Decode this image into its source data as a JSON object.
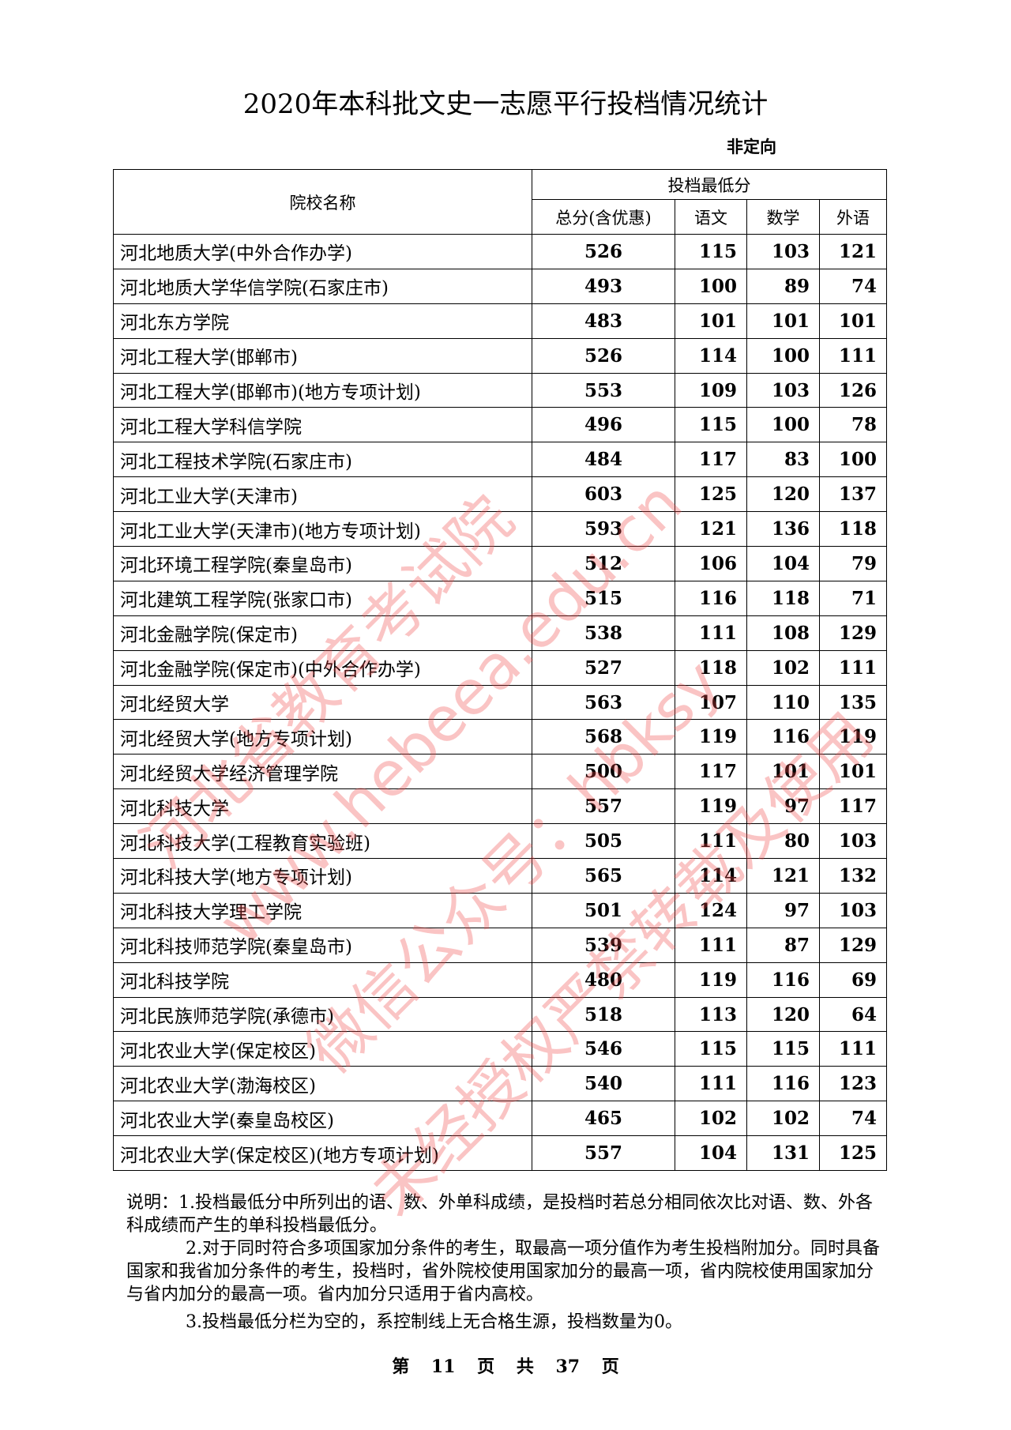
{
  "title": "2020年本科批文史一志愿平行投档情况统计",
  "subtitle": "非定向",
  "table": {
    "header_name": "院校名称",
    "header_group": "投档最低分",
    "columns": [
      "总分(含优惠)",
      "语文",
      "数学",
      "外语"
    ],
    "rows": [
      [
        "河北地质大学(中外合作办学)",
        "526",
        "115",
        "103",
        "121"
      ],
      [
        "河北地质大学华信学院(石家庄市)",
        "493",
        "100",
        "89",
        "74"
      ],
      [
        "河北东方学院",
        "483",
        "101",
        "101",
        "101"
      ],
      [
        "河北工程大学(邯郸市)",
        "526",
        "114",
        "100",
        "111"
      ],
      [
        "河北工程大学(邯郸市)(地方专项计划)",
        "553",
        "109",
        "103",
        "126"
      ],
      [
        "河北工程大学科信学院",
        "496",
        "115",
        "100",
        "78"
      ],
      [
        "河北工程技术学院(石家庄市)",
        "484",
        "117",
        "83",
        "100"
      ],
      [
        "河北工业大学(天津市)",
        "603",
        "125",
        "120",
        "137"
      ],
      [
        "河北工业大学(天津市)(地方专项计划)",
        "593",
        "121",
        "136",
        "118"
      ],
      [
        "河北环境工程学院(秦皇岛市)",
        "512",
        "106",
        "104",
        "79"
      ],
      [
        "河北建筑工程学院(张家口市)",
        "515",
        "116",
        "118",
        "71"
      ],
      [
        "河北金融学院(保定市)",
        "538",
        "111",
        "108",
        "129"
      ],
      [
        "河北金融学院(保定市)(中外合作办学)",
        "527",
        "118",
        "102",
        "111"
      ],
      [
        "河北经贸大学",
        "563",
        "107",
        "110",
        "135"
      ],
      [
        "河北经贸大学(地方专项计划)",
        "568",
        "119",
        "116",
        "119"
      ],
      [
        "河北经贸大学经济管理学院",
        "500",
        "117",
        "101",
        "101"
      ],
      [
        "河北科技大学",
        "557",
        "119",
        "97",
        "117"
      ],
      [
        "河北科技大学(工程教育实验班)",
        "505",
        "111",
        "80",
        "103"
      ],
      [
        "河北科技大学(地方专项计划)",
        "565",
        "114",
        "121",
        "132"
      ],
      [
        "河北科技大学理工学院",
        "501",
        "124",
        "97",
        "103"
      ],
      [
        "河北科技师范学院(秦皇岛市)",
        "539",
        "111",
        "87",
        "129"
      ],
      [
        "河北科技学院",
        "480",
        "119",
        "116",
        "69"
      ],
      [
        "河北民族师范学院(承德市)",
        "518",
        "113",
        "120",
        "64"
      ],
      [
        "河北农业大学(保定校区)",
        "546",
        "115",
        "115",
        "111"
      ],
      [
        "河北农业大学(渤海校区)",
        "540",
        "111",
        "116",
        "123"
      ],
      [
        "河北农业大学(秦皇岛校区)",
        "465",
        "102",
        "102",
        "74"
      ],
      [
        "河北农业大学(保定校区)(地方专项计划)",
        "557",
        "104",
        "131",
        "125"
      ]
    ]
  },
  "notes": [
    "说明：1.投档最低分中所列出的语、数、外单科成绩，是投档时若总分相同依次比对语、数、外各科成绩而产生的单科投档最低分。",
    "2.对于同时符合多项国家加分条件的考生，取最高一项分值作为考生投档附加分。同时具备国家和我省加分条件的考生，投档时，省外院校使用国家加分的最高一项，省内院校使用国家加分与省内加分的最高一项。省内加分只适用于省内高校。",
    "3.投档最低分栏为空的，系控制线上无合格生源，投档数量为0。"
  ],
  "footer": "第 11 页 共 37 页",
  "watermark": {
    "color": "#f04646",
    "lines": [
      "河北省教育考试院",
      "www.hebeea.edu.cn",
      "微信公众号：hbksy",
      "未经授权严禁转载及使用"
    ]
  }
}
